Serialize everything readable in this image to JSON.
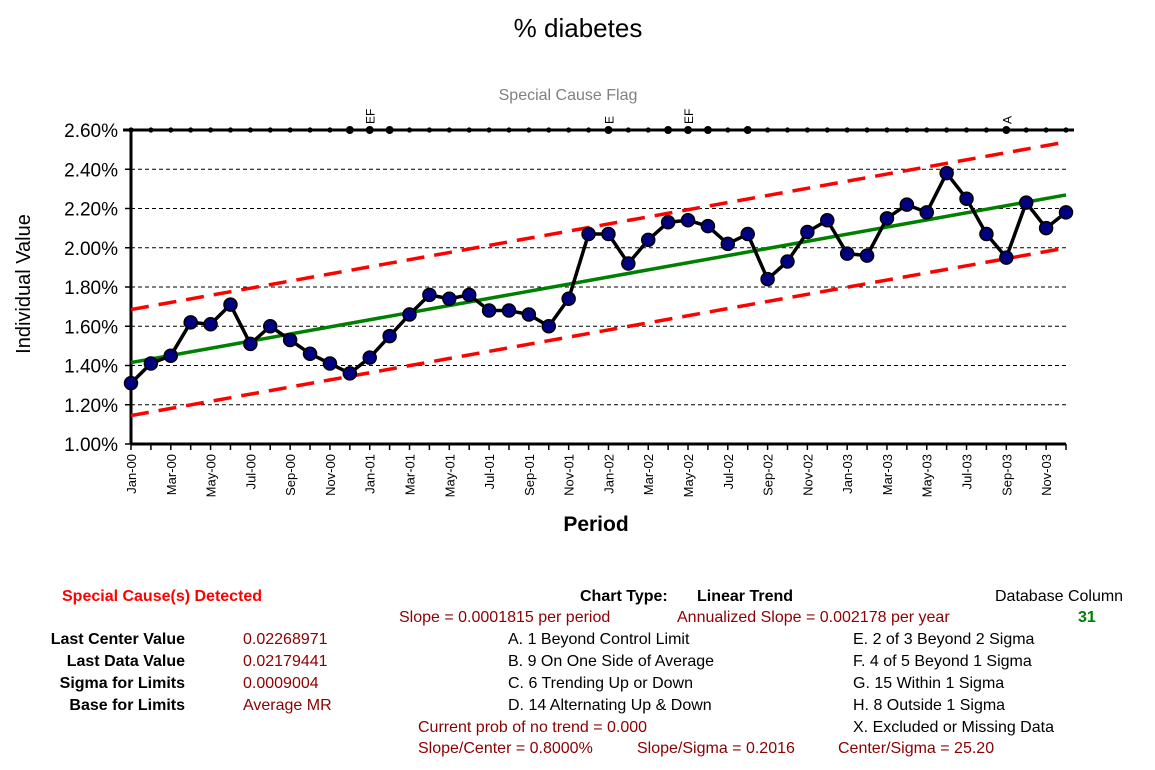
{
  "chart_data": {
    "type": "line",
    "title": "% diabetes",
    "subtitle": "Special Cause Flag",
    "xlabel": "Period",
    "ylabel": "Individual Value",
    "ylim": [
      0.01,
      0.026
    ],
    "yticks": [
      "1.00%",
      "1.20%",
      "1.40%",
      "1.60%",
      "1.80%",
      "2.00%",
      "2.20%",
      "2.40%",
      "2.60%"
    ],
    "grid": true,
    "x": [
      "Jan-00",
      "Feb-00",
      "Mar-00",
      "Apr-00",
      "May-00",
      "Jun-00",
      "Jul-00",
      "Aug-00",
      "Sep-00",
      "Oct-00",
      "Nov-00",
      "Dec-00",
      "Jan-01",
      "Feb-01",
      "Mar-01",
      "Apr-01",
      "May-01",
      "Jun-01",
      "Jul-01",
      "Aug-01",
      "Sep-01",
      "Oct-01",
      "Nov-01",
      "Dec-01",
      "Jan-02",
      "Feb-02",
      "Mar-02",
      "Apr-02",
      "May-02",
      "Jun-02",
      "Jul-02",
      "Aug-02",
      "Sep-02",
      "Oct-02",
      "Nov-02",
      "Dec-02",
      "Jan-03",
      "Feb-03",
      "Mar-03",
      "Apr-03",
      "May-03",
      "Jun-03",
      "Jul-03",
      "Aug-03",
      "Sep-03",
      "Oct-03",
      "Nov-03",
      "Dec-03"
    ],
    "xticklabels": [
      "Jan-00",
      "Mar-00",
      "May-00",
      "Jul-00",
      "Sep-00",
      "Nov-00",
      "Jan-01",
      "Mar-01",
      "May-01",
      "Jul-01",
      "Sep-01",
      "Nov-01",
      "Jan-02",
      "Mar-02",
      "May-02",
      "Jul-02",
      "Sep-02",
      "Nov-02",
      "Jan-03",
      "Mar-03",
      "May-03",
      "Jul-03",
      "Sep-03",
      "Nov-03"
    ],
    "series": [
      {
        "values": [
          0.0131,
          0.0141,
          0.0145,
          0.0162,
          0.0161,
          0.0171,
          0.0151,
          0.016,
          0.0153,
          0.0146,
          0.0141,
          0.0136,
          0.0144,
          0.0155,
          0.0166,
          0.0176,
          0.0174,
          0.0176,
          0.0168,
          0.0168,
          0.0166,
          0.016,
          0.0174,
          0.0207,
          0.0207,
          0.0192,
          0.0204,
          0.0213,
          0.0214,
          0.0211,
          0.0202,
          0.0207,
          0.0184,
          0.0193,
          0.0208,
          0.0214,
          0.0197,
          0.0196,
          0.0215,
          0.0222,
          0.0218,
          0.0238,
          0.0225,
          0.0207,
          0.0195,
          0.0223,
          0.021,
          0.0218
        ],
        "color": "#000080"
      },
      {
        "values_start_end": [
          0.01415,
          0.02269
        ],
        "color": "#008000",
        "style": "solid"
      },
      {
        "values_start_end": [
          0.01685,
          0.02539
        ],
        "color": "#ff0000",
        "style": "dashed"
      },
      {
        "values_start_end": [
          0.01145,
          0.01999
        ],
        "color": "#ff0000",
        "style": "dashed"
      }
    ],
    "flag_markers": [
      11,
      12,
      13,
      24,
      27,
      28,
      29,
      31,
      44
    ],
    "flag_labels": [
      {
        "index": 12,
        "text": "EF"
      },
      {
        "index": 24,
        "text": "E"
      },
      {
        "index": 28,
        "text": "EF"
      },
      {
        "index": 44,
        "text": "A"
      }
    ]
  },
  "footer": {
    "special_cause": "Special Cause(s) Detected",
    "chart_type_label": "Chart Type:",
    "chart_type_value": "Linear Trend",
    "db_label": "Database Column",
    "db_value": "31",
    "slope": "Slope = 0.0001815 per period",
    "ann_slope": "Annualized Slope = 0.002178 per year",
    "stats_labels": [
      "Last Center Value",
      "Last Data Value",
      "Sigma for Limits",
      "Base for Limits"
    ],
    "stats_values": [
      "0.02268971",
      "0.02179441",
      "0.0009004",
      "Average MR"
    ],
    "rules_left": [
      "A. 1 Beyond Control Limit",
      "B. 9 On One Side of Average",
      "C. 6 Trending Up or Down",
      "D. 14 Alternating  Up & Down"
    ],
    "rules_right": [
      "E.  2 of 3 Beyond 2 Sigma",
      "F.  4 of 5 Beyond 1 Sigma",
      "G.  15 Within 1 Sigma",
      "H.  8 Outside 1 Sigma",
      "X.  Excluded or Missing Data"
    ],
    "prob": "Current prob of no trend = 0.000",
    "slope_center": "Slope/Center = 0.8000%",
    "slope_sigma": "Slope/Sigma = 0.2016",
    "center_sigma": "Center/Sigma = 25.20"
  },
  "colors": {
    "data": "#000080",
    "center": "#008000",
    "limits": "#ff0000",
    "dark_red": "#8b0000"
  }
}
